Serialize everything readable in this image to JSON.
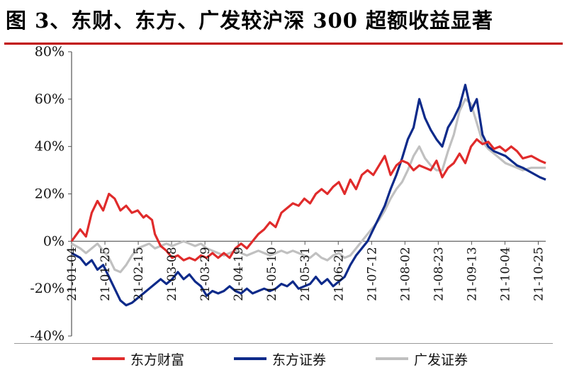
{
  "title": "图 3、东财、东方、广发较沪深 300 超额收益显著",
  "colors": {
    "title_rule": "#c00000",
    "东方财富": "#e02b2b",
    "东方证券": "#0d2a8a",
    "广发证券": "#c0c0c0"
  },
  "chart_data": {
    "type": "line",
    "ylim": [
      -40,
      80
    ],
    "y_ticks": [
      80,
      60,
      40,
      20,
      0,
      -20,
      -40
    ],
    "y_tick_labels": [
      "80%",
      "60%",
      "40%",
      "20%",
      "0%",
      "-20%",
      "-40%"
    ],
    "x_tick_labels": [
      "21-01-04",
      "21-01-25",
      "21-02-15",
      "21-03-08",
      "21-03-29",
      "21-04-19",
      "21-05-10",
      "21-05-31",
      "21-06-21",
      "21-07-12",
      "21-08-02",
      "21-08-23",
      "21-09-13",
      "21-10-04",
      "21-10-25"
    ],
    "xlabel": "",
    "ylabel": "",
    "legend_position": "bottom",
    "series": [
      {
        "name": "东方财富",
        "color": "#e02b2b",
        "points": [
          [
            0,
            0
          ],
          [
            3,
            5
          ],
          [
            5,
            2
          ],
          [
            7,
            12
          ],
          [
            9,
            17
          ],
          [
            11,
            13
          ],
          [
            13,
            20
          ],
          [
            15,
            18
          ],
          [
            17,
            13
          ],
          [
            19,
            15
          ],
          [
            21,
            12
          ],
          [
            23,
            13
          ],
          [
            25,
            10
          ],
          [
            26,
            11
          ],
          [
            28,
            9
          ],
          [
            29,
            3
          ],
          [
            31,
            -2
          ],
          [
            33,
            -4
          ],
          [
            35,
            -7
          ],
          [
            37,
            -6
          ],
          [
            39,
            -8
          ],
          [
            41,
            -7
          ],
          [
            43,
            -8
          ],
          [
            45,
            -6
          ],
          [
            47,
            -7
          ],
          [
            49,
            -5
          ],
          [
            51,
            -7
          ],
          [
            53,
            -5
          ],
          [
            55,
            -7
          ],
          [
            57,
            -3
          ],
          [
            59,
            -1
          ],
          [
            61,
            -3
          ],
          [
            63,
            0
          ],
          [
            65,
            3
          ],
          [
            67,
            5
          ],
          [
            69,
            8
          ],
          [
            71,
            6
          ],
          [
            73,
            12
          ],
          [
            75,
            14
          ],
          [
            77,
            16
          ],
          [
            79,
            15
          ],
          [
            81,
            18
          ],
          [
            83,
            16
          ],
          [
            85,
            20
          ],
          [
            87,
            22
          ],
          [
            89,
            20
          ],
          [
            91,
            23
          ],
          [
            93,
            25
          ],
          [
            95,
            20
          ],
          [
            97,
            26
          ],
          [
            99,
            22
          ],
          [
            101,
            28
          ],
          [
            103,
            30
          ],
          [
            105,
            28
          ],
          [
            107,
            32
          ],
          [
            109,
            36
          ],
          [
            111,
            28
          ],
          [
            113,
            32
          ],
          [
            115,
            34
          ],
          [
            117,
            33
          ],
          [
            119,
            30
          ],
          [
            121,
            32
          ],
          [
            123,
            31
          ],
          [
            125,
            30
          ],
          [
            127,
            34
          ],
          [
            129,
            27
          ],
          [
            131,
            31
          ],
          [
            133,
            33
          ],
          [
            135,
            37
          ],
          [
            137,
            33
          ],
          [
            139,
            40
          ],
          [
            141,
            43
          ],
          [
            143,
            41
          ],
          [
            145,
            42
          ],
          [
            147,
            39
          ],
          [
            149,
            40
          ],
          [
            151,
            38
          ],
          [
            153,
            40
          ],
          [
            155,
            38
          ],
          [
            157,
            35
          ],
          [
            160,
            36
          ],
          [
            163,
            34
          ],
          [
            165,
            33
          ]
        ]
      },
      {
        "name": "东方证券",
        "color": "#0d2a8a",
        "points": [
          [
            0,
            -5
          ],
          [
            3,
            -7
          ],
          [
            5,
            -10
          ],
          [
            7,
            -8
          ],
          [
            9,
            -12
          ],
          [
            11,
            -10
          ],
          [
            13,
            -15
          ],
          [
            15,
            -20
          ],
          [
            17,
            -25
          ],
          [
            19,
            -27
          ],
          [
            21,
            -26
          ],
          [
            23,
            -24
          ],
          [
            25,
            -22
          ],
          [
            27,
            -20
          ],
          [
            29,
            -18
          ],
          [
            31,
            -16
          ],
          [
            33,
            -18
          ],
          [
            35,
            -16
          ],
          [
            37,
            -13
          ],
          [
            39,
            -16
          ],
          [
            41,
            -14
          ],
          [
            43,
            -17
          ],
          [
            45,
            -19
          ],
          [
            47,
            -23
          ],
          [
            49,
            -21
          ],
          [
            51,
            -22
          ],
          [
            53,
            -21
          ],
          [
            55,
            -19
          ],
          [
            57,
            -21
          ],
          [
            59,
            -22
          ],
          [
            61,
            -20
          ],
          [
            63,
            -22
          ],
          [
            65,
            -21
          ],
          [
            67,
            -20
          ],
          [
            69,
            -21
          ],
          [
            71,
            -20
          ],
          [
            73,
            -18
          ],
          [
            75,
            -19
          ],
          [
            77,
            -17
          ],
          [
            79,
            -20
          ],
          [
            81,
            -19
          ],
          [
            83,
            -18
          ],
          [
            85,
            -15
          ],
          [
            87,
            -18
          ],
          [
            89,
            -16
          ],
          [
            91,
            -19
          ],
          [
            93,
            -17
          ],
          [
            95,
            -15
          ],
          [
            97,
            -10
          ],
          [
            99,
            -6
          ],
          [
            101,
            -3
          ],
          [
            103,
            0
          ],
          [
            105,
            5
          ],
          [
            107,
            10
          ],
          [
            109,
            15
          ],
          [
            111,
            22
          ],
          [
            113,
            28
          ],
          [
            115,
            35
          ],
          [
            117,
            43
          ],
          [
            119,
            48
          ],
          [
            121,
            60
          ],
          [
            123,
            52
          ],
          [
            125,
            47
          ],
          [
            127,
            43
          ],
          [
            129,
            40
          ],
          [
            131,
            48
          ],
          [
            133,
            52
          ],
          [
            135,
            57
          ],
          [
            137,
            66
          ],
          [
            139,
            55
          ],
          [
            141,
            60
          ],
          [
            143,
            45
          ],
          [
            145,
            40
          ],
          [
            147,
            38
          ],
          [
            149,
            37
          ],
          [
            151,
            36
          ],
          [
            153,
            34
          ],
          [
            155,
            32
          ],
          [
            157,
            31
          ],
          [
            160,
            29
          ],
          [
            163,
            27
          ],
          [
            165,
            26
          ]
        ]
      },
      {
        "name": "广发证券",
        "color": "#c0c0c0",
        "points": [
          [
            0,
            -1
          ],
          [
            3,
            -3
          ],
          [
            5,
            -5
          ],
          [
            7,
            -3
          ],
          [
            9,
            -1
          ],
          [
            11,
            -4
          ],
          [
            13,
            -7
          ],
          [
            15,
            -12
          ],
          [
            17,
            -13
          ],
          [
            19,
            -10
          ],
          [
            21,
            -6
          ],
          [
            23,
            -3
          ],
          [
            25,
            -2
          ],
          [
            27,
            -1
          ],
          [
            29,
            -3
          ],
          [
            31,
            -2
          ],
          [
            33,
            -1
          ],
          [
            35,
            -2
          ],
          [
            37,
            -1
          ],
          [
            39,
            0
          ],
          [
            41,
            -1
          ],
          [
            43,
            -2
          ],
          [
            45,
            -1
          ],
          [
            47,
            -3
          ],
          [
            49,
            -4
          ],
          [
            51,
            -5
          ],
          [
            53,
            -6
          ],
          [
            55,
            -5
          ],
          [
            57,
            -4
          ],
          [
            59,
            -5
          ],
          [
            61,
            -6
          ],
          [
            63,
            -5
          ],
          [
            65,
            -4
          ],
          [
            67,
            -5
          ],
          [
            69,
            -6
          ],
          [
            71,
            -5
          ],
          [
            73,
            -4
          ],
          [
            75,
            -5
          ],
          [
            77,
            -4
          ],
          [
            79,
            -5
          ],
          [
            81,
            -6
          ],
          [
            83,
            -7
          ],
          [
            85,
            -5
          ],
          [
            87,
            -7
          ],
          [
            89,
            -8
          ],
          [
            91,
            -6
          ],
          [
            93,
            -5
          ],
          [
            95,
            -7
          ],
          [
            97,
            -6
          ],
          [
            99,
            -3
          ],
          [
            101,
            0
          ],
          [
            103,
            3
          ],
          [
            105,
            6
          ],
          [
            107,
            9
          ],
          [
            109,
            13
          ],
          [
            111,
            18
          ],
          [
            113,
            22
          ],
          [
            115,
            25
          ],
          [
            117,
            30
          ],
          [
            119,
            36
          ],
          [
            121,
            40
          ],
          [
            123,
            35
          ],
          [
            125,
            32
          ],
          [
            127,
            30
          ],
          [
            129,
            30
          ],
          [
            131,
            38
          ],
          [
            133,
            45
          ],
          [
            135,
            55
          ],
          [
            137,
            60
          ],
          [
            139,
            58
          ],
          [
            141,
            50
          ],
          [
            143,
            42
          ],
          [
            145,
            39
          ],
          [
            147,
            37
          ],
          [
            149,
            35
          ],
          [
            151,
            33
          ],
          [
            153,
            32
          ],
          [
            155,
            31
          ],
          [
            157,
            30
          ],
          [
            160,
            31
          ],
          [
            163,
            31
          ],
          [
            165,
            31
          ]
        ]
      }
    ]
  }
}
